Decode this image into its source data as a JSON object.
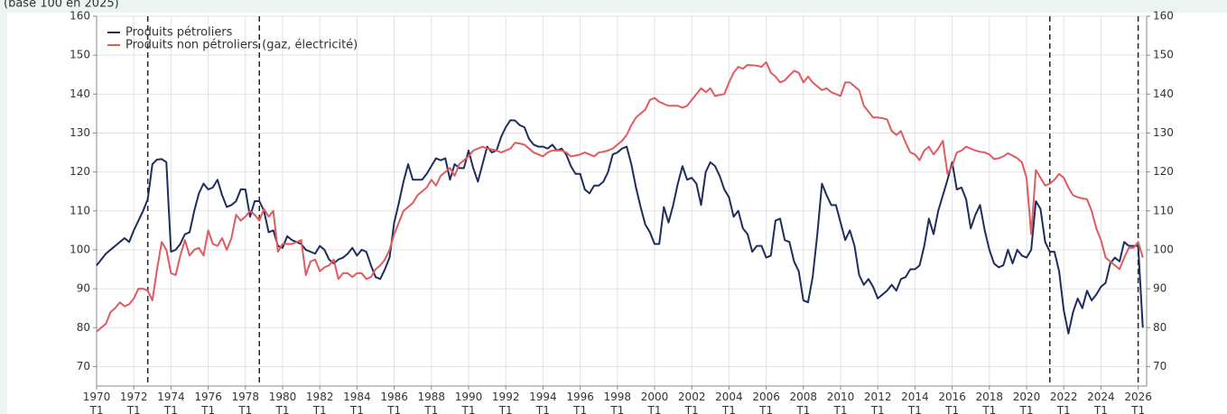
{
  "chart_data": {
    "type": "line",
    "subtitle": "(base 100 en 2025)",
    "categories": [
      "1970 T1",
      null,
      null,
      null,
      null,
      null,
      null,
      null,
      "1972 T1",
      null,
      null,
      null,
      null,
      null,
      null,
      null,
      "1974 T1",
      null,
      null,
      null,
      null,
      null,
      null,
      null,
      "1976 T1",
      null,
      null,
      null,
      null,
      null,
      null,
      null,
      "1978 T1",
      null,
      null,
      null,
      null,
      null,
      null,
      null,
      "1980 T1",
      null,
      null,
      null,
      null,
      null,
      null,
      null,
      "1982 T1",
      null,
      null,
      null,
      null,
      null,
      null,
      null,
      "1984 T1",
      null,
      null,
      null,
      null,
      null,
      null,
      null,
      "1986 T1",
      null,
      null,
      null,
      null,
      null,
      null,
      null,
      "1988 T1",
      null,
      null,
      null,
      null,
      null,
      null,
      null,
      "1990 T1",
      null,
      null,
      null,
      null,
      null,
      null,
      null,
      "1992 T1",
      null,
      null,
      null,
      null,
      null,
      null,
      null,
      "1994 T1",
      null,
      null,
      null,
      null,
      null,
      null,
      null,
      "1996 T1",
      null,
      null,
      null,
      null,
      null,
      null,
      null,
      "1998 T1",
      null,
      null,
      null,
      null,
      null,
      null,
      null,
      "2000 T1",
      null,
      null,
      null,
      null,
      null,
      null,
      null,
      "2002 T1",
      null,
      null,
      null,
      null,
      null,
      null,
      null,
      "2004 T1",
      null,
      null,
      null,
      null,
      null,
      null,
      null,
      "2006 T1",
      null,
      null,
      null,
      null,
      null,
      null,
      null,
      "2008 T1",
      null,
      null,
      null,
      null,
      null,
      null,
      null,
      "2010 T1",
      null,
      null,
      null,
      null,
      null,
      null,
      null,
      "2012 T1",
      null,
      null,
      null,
      null,
      null,
      null,
      null,
      "2014 T1",
      null,
      null,
      null,
      null,
      null,
      null,
      null,
      "2016 T1",
      null,
      null,
      null,
      null,
      null,
      null,
      null,
      "2018 T1",
      null,
      null,
      null,
      null,
      null,
      null,
      null,
      "2020 T1",
      null,
      null,
      null,
      null,
      null,
      null,
      null,
      "2022 T1",
      null,
      null,
      null,
      null,
      null,
      null,
      null,
      "2024 T1",
      null,
      null,
      null,
      null,
      null,
      null,
      null,
      "2026 T1",
      null
    ],
    "series": [
      {
        "name": "Produits pétroliers",
        "color": "#1f2d5c",
        "values": [
          96,
          97.5,
          99,
          100,
          101,
          102,
          103,
          102,
          105,
          107.5,
          110,
          113,
          122,
          123.2,
          123.3,
          122.5,
          99.5,
          100,
          101.5,
          104,
          104.5,
          110,
          114.5,
          117,
          115.5,
          116,
          118,
          114,
          111,
          111.5,
          112.5,
          115.5,
          115.5,
          108.5,
          112.5,
          112.5,
          110,
          104.5,
          105,
          101,
          100.5,
          103.5,
          102.5,
          102,
          101.5,
          100,
          99.5,
          99,
          101,
          100,
          97.5,
          96.5,
          97.5,
          98,
          99,
          100.5,
          98.5,
          100,
          99.5,
          96,
          93,
          92.5,
          95,
          98,
          107,
          112,
          117.5,
          122,
          118,
          118,
          118,
          119.5,
          121.5,
          123.5,
          123,
          123.5,
          118,
          122,
          121,
          121,
          125.5,
          121,
          117.5,
          122,
          126.5,
          125,
          125.5,
          129,
          131.5,
          133.3,
          133.2,
          132,
          131.5,
          128.5,
          127,
          126.5,
          126.5,
          126,
          127,
          125.5,
          126,
          124.5,
          121.5,
          119.5,
          119.5,
          115.5,
          114.5,
          116.5,
          116.5,
          117.5,
          120,
          124.5,
          125,
          126,
          126.5,
          122,
          116,
          111,
          106.5,
          104.5,
          101.5,
          101.5,
          111,
          107,
          111.5,
          117,
          121.5,
          118,
          118.5,
          117,
          111.5,
          120,
          122.5,
          121.5,
          119,
          115.5,
          113.5,
          108.5,
          110,
          105.5,
          104,
          99.5,
          101,
          101,
          98,
          98.5,
          107.5,
          108,
          102.5,
          102,
          97,
          94.5,
          87,
          86.5,
          93,
          104,
          117,
          114,
          111.5,
          111.5,
          107,
          102.5,
          105,
          101,
          93.5,
          91,
          92.5,
          90.5,
          87.5,
          88.5,
          89.5,
          91,
          89.5,
          92.5,
          93,
          95,
          95,
          96,
          101,
          108,
          104,
          110,
          114,
          118,
          122.5,
          115.5,
          116,
          113,
          105.5,
          109,
          111.5,
          105,
          100,
          96.5,
          95.5,
          96,
          100,
          96.5,
          100,
          98.5,
          98,
          100,
          112.5,
          110.5,
          102,
          99.5,
          99.5,
          94.5,
          84.5,
          78.5,
          84,
          87.5,
          85,
          89.5,
          87,
          88.5,
          90.5,
          91.5,
          96.5,
          98,
          97,
          102,
          101,
          101,
          101,
          80
        ]
      },
      {
        "name": "Produits non pétroliers (gaz, électricité)",
        "color": "#e05a5f",
        "values": [
          79,
          80,
          81,
          84,
          85,
          86.5,
          85.5,
          86,
          87.5,
          90,
          90,
          89.5,
          87,
          95,
          102,
          100,
          94,
          93.5,
          98.5,
          102.5,
          98.5,
          100,
          100.5,
          98.5,
          105,
          101.5,
          101,
          103,
          100,
          103,
          109,
          107.5,
          108.5,
          110,
          109,
          107.5,
          110.5,
          108.5,
          110,
          99.5,
          101.5,
          101.5,
          101.5,
          102,
          102.5,
          93.5,
          97,
          97.5,
          94.5,
          95.5,
          96,
          97.5,
          92.5,
          94,
          94,
          93,
          94,
          94,
          92.5,
          93,
          95,
          96,
          97.5,
          100,
          104,
          107,
          110,
          111,
          112,
          114,
          115,
          116,
          118,
          116.5,
          119,
          120,
          121,
          119,
          122,
          123,
          124,
          125.5,
          126,
          126.5,
          126,
          125.8,
          125.5,
          125,
          125.5,
          126,
          127.5,
          127.3,
          127,
          126,
          125,
          124.5,
          124,
          125,
          125.5,
          125.5,
          125.5,
          125,
          124,
          124.2,
          124.5,
          125,
          124.5,
          124,
          125,
          125.2,
          125.5,
          126,
          127,
          128,
          129.5,
          132,
          134,
          135,
          136,
          138.5,
          139,
          138,
          137.5,
          137,
          137,
          137,
          136.5,
          137,
          138.5,
          140,
          141.5,
          140.5,
          141.5,
          139.5,
          139.8,
          140,
          143,
          145.5,
          147,
          146.5,
          147.5,
          147.4,
          147.3,
          147,
          148.2,
          145.5,
          144.5,
          143,
          143.5,
          144.8,
          146,
          145.5,
          143,
          144.5,
          143,
          142,
          141,
          141.5,
          140.5,
          140,
          139.5,
          143,
          143,
          142,
          141,
          137,
          135.5,
          134,
          134,
          133.8,
          133.5,
          130.5,
          129.5,
          130.5,
          127.5,
          125,
          124.5,
          123,
          125.5,
          126.5,
          124.5,
          126,
          128,
          119.5,
          121.5,
          125,
          125.5,
          126.5,
          126,
          125.5,
          125.2,
          125,
          124.5,
          123.3,
          123.5,
          124,
          124.8,
          124.2,
          123.5,
          122.5,
          118.5,
          104,
          120.5,
          118.5,
          116.5,
          117,
          118,
          119.5,
          118.5,
          116,
          114,
          113.5,
          113.2,
          113,
          110,
          105.5,
          102.5,
          98,
          97,
          96,
          95,
          98,
          100.5,
          100.5,
          102,
          98
        ]
      }
    ],
    "vlines": [
      11,
      35,
      205,
      224
    ],
    "ylim": [
      65,
      160
    ],
    "yticks": [
      70,
      80,
      90,
      100,
      110,
      120,
      130,
      140,
      150,
      160
    ],
    "y2lim": [
      65,
      160
    ],
    "y2ticks": [
      70,
      80,
      90,
      100,
      110,
      120,
      130,
      140,
      150,
      160
    ],
    "grid": true,
    "legend": "upper left"
  }
}
